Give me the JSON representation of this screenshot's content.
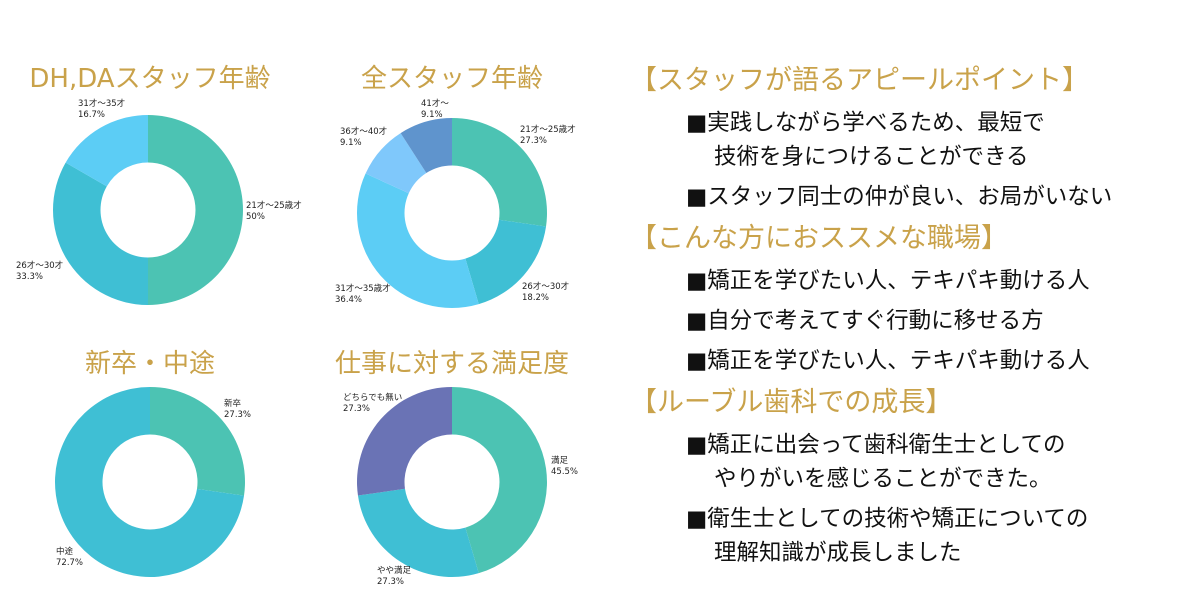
{
  "chart_data": [
    {
      "type": "pie",
      "title": "DH,DAスタッフ年齢",
      "slices": [
        {
          "label": "21才～25歳才",
          "percent_text": "50%",
          "value": 50,
          "color": "#4cc3b3"
        },
        {
          "label": "26才～30才",
          "percent_text": "33.3%",
          "value": 33.3,
          "color": "#3fbfd4"
        },
        {
          "label": "31才～35才",
          "percent_text": "16.7%",
          "value": 16.7,
          "color": "#5ccdf5"
        }
      ]
    },
    {
      "type": "pie",
      "title": "全スタッフ年齢",
      "slices": [
        {
          "label": "21才～25歳才",
          "percent_text": "27.3%",
          "value": 27.3,
          "color": "#4cc3b3"
        },
        {
          "label": "26才～30才",
          "percent_text": "18.2%",
          "value": 18.2,
          "color": "#3fbfd4"
        },
        {
          "label": "31才～35歳才",
          "percent_text": "36.4%",
          "value": 36.4,
          "color": "#5ccdf5"
        },
        {
          "label": "36才～40才",
          "percent_text": "9.1%",
          "value": 9.1,
          "color": "#7fc8fb"
        },
        {
          "label": "41才～",
          "percent_text": "9.1%",
          "value": 9.1,
          "color": "#5f94cd"
        }
      ]
    },
    {
      "type": "pie",
      "title": "新卒・中途",
      "slices": [
        {
          "label": "新卒",
          "percent_text": "27.3%",
          "value": 27.3,
          "color": "#4cc3b3"
        },
        {
          "label": "中途",
          "percent_text": "72.7%",
          "value": 72.7,
          "color": "#3fbfd4"
        }
      ]
    },
    {
      "type": "pie",
      "title": "仕事に対する満足度",
      "slices": [
        {
          "label": "満足",
          "percent_text": "45.5%",
          "value": 45.5,
          "color": "#4cc3b3"
        },
        {
          "label": "やや満足",
          "percent_text": "27.3%",
          "value": 27.3,
          "color": "#3fbfd4"
        },
        {
          "label": "どちらでも無い",
          "percent_text": "27.3%",
          "value": 27.3,
          "color": "#6a73b5"
        }
      ]
    }
  ],
  "panel": {
    "sections": [
      {
        "heading": "【スタッフが語るアピールポイント】",
        "items": [
          [
            "■実践しながら学べるため、最短で",
            "技術を身につけることができる"
          ],
          [
            "■スタッフ同士の仲が良い、お局がいない"
          ]
        ]
      },
      {
        "heading": "【こんな方におススメな職場】",
        "items": [
          [
            "■矯正を学びたい人、テキパキ動ける人"
          ],
          [
            "■自分で考えてすぐ行動に移せる方"
          ],
          [
            "■矯正を学びたい人、テキパキ動ける人"
          ]
        ]
      },
      {
        "heading": "【ルーブル歯科での成長】",
        "items": [
          [
            "■矯正に出会って歯科衛生士としての",
            "やりがいを感じることができた。"
          ],
          [
            "■衛生士としての技術や矯正についての",
            "理解知識が成長しました"
          ]
        ]
      }
    ]
  }
}
